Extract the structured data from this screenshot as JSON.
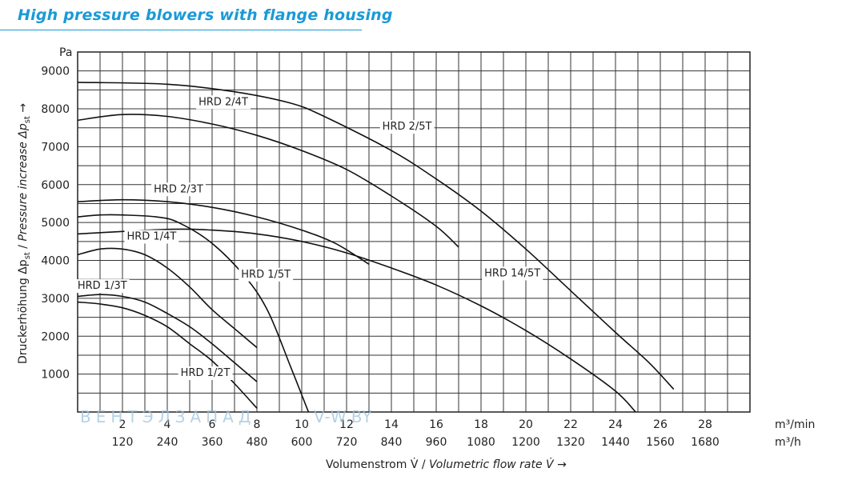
{
  "title": "High pressure blowers with flange housing",
  "watermark": {
    "left": "ВЕНТЭЛЗАПАД",
    "right": "V-W.BY"
  },
  "chart_data": {
    "type": "line",
    "title": "High pressure blowers with flange housing",
    "ylabel": "Druckerhöhung Δp_st / Pressure increase Δp_st →",
    "ylabel_parts": {
      "de": "Druckerhöhung Δp",
      "de_sub": "st",
      "sep": " / ",
      "en": "Pressure increase Δp",
      "en_sub": "st",
      "arrow": " →"
    },
    "xlabel": "Volumenstrom V̇ / Volumetric flow rate V̇ →",
    "xlabel_parts": {
      "de": "Volumenstrom V̇ / ",
      "en": "Volumetric flow rate V̇",
      "arrow": " →"
    },
    "y_unit": "Pa",
    "x_unit_primary": "m³/min",
    "x_unit_secondary": "m³/h",
    "xlim": [
      0,
      30
    ],
    "ylim": [
      0,
      9500
    ],
    "y_ticks": [
      1000,
      2000,
      3000,
      4000,
      5000,
      6000,
      7000,
      8000,
      9000
    ],
    "y_tick_labels": [
      "1000",
      "2000",
      "3000",
      "4000",
      "5000",
      "6000",
      "7000",
      "8000",
      "9000"
    ],
    "x_ticks_primary": [
      2,
      4,
      6,
      8,
      10,
      12,
      14,
      16,
      18,
      20,
      22,
      24,
      26,
      28
    ],
    "x_tick_labels_primary": [
      "2",
      "4",
      "6",
      "8",
      "10",
      "12",
      "14",
      "16",
      "18",
      "20",
      "22",
      "24",
      "26",
      "28"
    ],
    "x_tick_labels_secondary": [
      "120",
      "240",
      "360",
      "480",
      "600",
      "720",
      "840",
      "960",
      "1080",
      "1200",
      "1320",
      "1440",
      "1560",
      "1680"
    ],
    "grid": true,
    "series": [
      {
        "name": "HRD 2/5T",
        "x": [
          0,
          4,
          7,
          9.5,
          11,
          14,
          16,
          18,
          20,
          22,
          24,
          25.5,
          26.6
        ],
        "y": [
          8700,
          8650,
          8450,
          8150,
          7800,
          6900,
          6150,
          5300,
          4300,
          3200,
          2100,
          1300,
          600
        ]
      },
      {
        "name": "HRD 2/4T",
        "x": [
          0,
          2,
          4,
          6,
          8,
          10,
          12,
          14,
          16,
          17
        ],
        "y": [
          7700,
          7850,
          7800,
          7600,
          7300,
          6900,
          6400,
          5700,
          4900,
          4350
        ]
      },
      {
        "name": "HRD 2/3T",
        "x": [
          0,
          2,
          4,
          6,
          8,
          10,
          11.5,
          13
        ],
        "y": [
          5550,
          5600,
          5550,
          5400,
          5150,
          4800,
          4450,
          3900
        ]
      },
      {
        "name": "HRD 14/5T",
        "x": [
          0,
          4,
          6,
          8,
          10,
          12,
          14,
          16,
          18,
          20,
          22,
          24,
          24.9
        ],
        "y": [
          4700,
          4820,
          4800,
          4700,
          4500,
          4200,
          3800,
          3350,
          2800,
          2150,
          1400,
          550,
          0
        ]
      },
      {
        "name": "HRD 1/5T",
        "x": [
          0,
          1,
          2,
          3.5,
          4.5,
          6,
          7.5,
          8.5,
          9.5,
          10.3
        ],
        "y": [
          5150,
          5200,
          5200,
          5150,
          5000,
          4450,
          3550,
          2650,
          1200,
          0
        ]
      },
      {
        "name": "HRD 1/4T",
        "x": [
          0,
          1,
          2,
          3,
          4,
          5,
          6,
          7,
          8
        ],
        "y": [
          4150,
          4300,
          4300,
          4150,
          3800,
          3300,
          2700,
          2200,
          1700
        ]
      },
      {
        "name": "HRD 1/3T",
        "x": [
          0,
          1,
          2,
          3,
          4,
          5,
          6,
          7,
          8
        ],
        "y": [
          3050,
          3100,
          3050,
          2900,
          2600,
          2250,
          1800,
          1300,
          800
        ]
      },
      {
        "name": "HRD 1/2T",
        "x": [
          0,
          1,
          2,
          3,
          4,
          5,
          6,
          7,
          8
        ],
        "y": [
          2900,
          2850,
          2750,
          2550,
          2250,
          1800,
          1350,
          750,
          100
        ]
      }
    ],
    "annotations": [
      {
        "text": "HRD 2/4T",
        "series": "HRD 2/4T",
        "anchor_x": 6.5,
        "anchor_y": 8100
      },
      {
        "text": "HRD 2/5T",
        "series": "HRD 2/5T",
        "anchor_x": 14.7,
        "anchor_y": 7450
      },
      {
        "text": "HRD 2/3T",
        "series": "HRD 2/3T",
        "anchor_x": 4.5,
        "anchor_y": 5800
      },
      {
        "text": "HRD 1/4T",
        "series": "HRD 1/4T",
        "anchor_x": 3.3,
        "anchor_y": 4550
      },
      {
        "text": "HRD 1/5T",
        "series": "HRD 1/5T",
        "anchor_x": 8.4,
        "anchor_y": 3550
      },
      {
        "text": "HRD 14/5T",
        "series": "HRD 14/5T",
        "anchor_x": 19.4,
        "anchor_y": 3580
      },
      {
        "text": "HRD 1/3T",
        "series": "HRD 1/3T",
        "anchor_x": 1.1,
        "anchor_y": 3250
      },
      {
        "text": "HRD 1/2T",
        "series": "HRD 1/2T",
        "anchor_x": 5.7,
        "anchor_y": 950
      }
    ]
  }
}
